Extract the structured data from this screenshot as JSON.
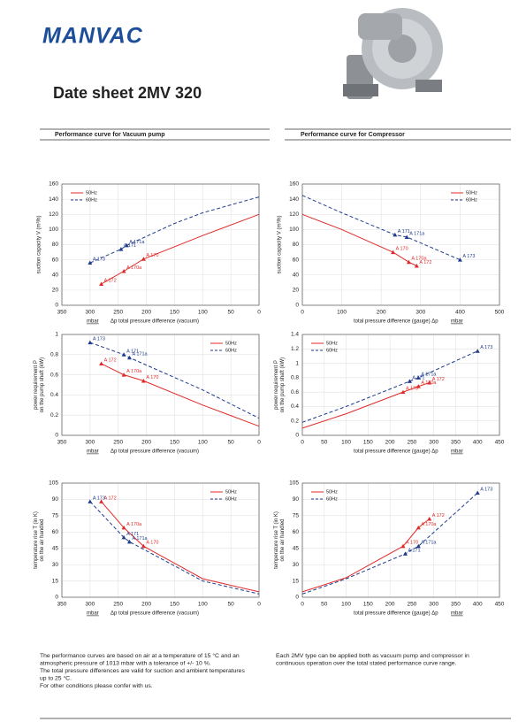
{
  "header": {
    "logo": "MANVAC",
    "title": "Date sheet 2MV 320"
  },
  "sections": [
    "Performance curve for Vacuum pump",
    "Performance curve for Compressor"
  ],
  "chart_data": [
    {
      "type": "line",
      "ylabel": [
        "suction capacity V (m³/h)"
      ],
      "xlabel": "Δp total pressure difference (vacuum)",
      "xunit": "mbar",
      "unit_position": "left",
      "legend": "upper left",
      "grid": true,
      "xlim": [
        350,
        0
      ],
      "xticks": [
        350,
        300,
        250,
        200,
        150,
        100,
        50,
        0
      ],
      "ylim": [
        0,
        160
      ],
      "yticks": [
        0,
        20,
        40,
        60,
        80,
        100,
        120,
        140,
        160
      ],
      "series": [
        {
          "name": "50Hz",
          "color": "#e02a2a",
          "dash": false,
          "x": [
            280,
            240,
            205,
            100,
            0
          ],
          "values": [
            28,
            45,
            61,
            92,
            120
          ],
          "point_labels": [
            "A 172",
            "A 170a",
            "A 170",
            null,
            null
          ]
        },
        {
          "name": "60Hz",
          "color": "#1f3b8c",
          "dash": true,
          "x": [
            300,
            245,
            235,
            150,
            100,
            0
          ],
          "values": [
            56,
            74,
            79,
            108,
            122,
            143
          ],
          "point_labels": [
            "A 173",
            "A 171",
            "A 171a",
            null,
            null,
            null
          ]
        }
      ]
    },
    {
      "type": "line",
      "ylabel": [
        "suction capacity V (m³/h)"
      ],
      "xlabel": "total pressure difference (gauge) Δp",
      "xunit": "mbar",
      "unit_position": "right",
      "legend": "upper right",
      "grid": true,
      "xlim": [
        0,
        500
      ],
      "xticks": [
        0,
        100,
        200,
        300,
        400,
        500
      ],
      "ylim": [
        0,
        160
      ],
      "yticks": [
        0,
        20,
        40,
        60,
        80,
        100,
        120,
        140,
        160
      ],
      "series": [
        {
          "name": "50Hz",
          "color": "#e02a2a",
          "dash": false,
          "x": [
            0,
            100,
            230,
            270,
            290
          ],
          "values": [
            120,
            100,
            70,
            57,
            52
          ],
          "point_labels": [
            null,
            null,
            "A 170",
            "A 170a",
            "A 172"
          ]
        },
        {
          "name": "60Hz",
          "color": "#1f3b8c",
          "dash": true,
          "x": [
            0,
            100,
            235,
            265,
            400
          ],
          "values": [
            145,
            122,
            93,
            90,
            60
          ],
          "point_labels": [
            null,
            null,
            "A 171",
            "A 171a",
            "A 173"
          ]
        }
      ]
    },
    {
      "type": "line",
      "ylabel": [
        "power requirement P",
        "on the pump shaft (kW)"
      ],
      "xlabel": "Δp total pressure difference (vacuum)",
      "xunit": "mbar",
      "unit_position": "left",
      "legend": "upper right",
      "grid": true,
      "xlim": [
        350,
        0
      ],
      "xticks": [
        350,
        300,
        250,
        200,
        150,
        100,
        50,
        0
      ],
      "ylim": [
        0,
        1
      ],
      "yticks": [
        0,
        0.2,
        0.4,
        0.6,
        0.8,
        1
      ],
      "series": [
        {
          "name": "50Hz",
          "color": "#e02a2a",
          "dash": false,
          "x": [
            280,
            240,
            205,
            100,
            0
          ],
          "values": [
            0.71,
            0.6,
            0.54,
            0.3,
            0.09
          ],
          "point_labels": [
            "A 172",
            "A 170a",
            "A 170",
            null,
            null
          ]
        },
        {
          "name": "60Hz",
          "color": "#1f3b8c",
          "dash": true,
          "x": [
            300,
            240,
            230,
            100,
            0
          ],
          "values": [
            0.92,
            0.8,
            0.77,
            0.45,
            0.17
          ],
          "point_labels": [
            "A 173",
            "A 171",
            "A 171a",
            null,
            null
          ]
        }
      ]
    },
    {
      "type": "line",
      "ylabel": [
        "power requirement P",
        "on the pump shaft (kW)"
      ],
      "xlabel": "total pressure difference (gauge) Δp",
      "xunit": "mbar",
      "unit_position": "right",
      "legend": "upper left",
      "grid": true,
      "xlim": [
        0,
        450
      ],
      "xticks": [
        0,
        50,
        100,
        150,
        200,
        250,
        300,
        350,
        400,
        450
      ],
      "ylim": [
        0,
        1.4
      ],
      "yticks": [
        0,
        0.2,
        0.4,
        0.6,
        0.8,
        1,
        1.2,
        1.4
      ],
      "series": [
        {
          "name": "50Hz",
          "color": "#e02a2a",
          "dash": false,
          "x": [
            0,
            100,
            230,
            265,
            290
          ],
          "values": [
            0.1,
            0.3,
            0.6,
            0.68,
            0.73
          ],
          "point_labels": [
            null,
            null,
            "A 170",
            "A 170a",
            "A 172"
          ]
        },
        {
          "name": "60Hz",
          "color": "#1f3b8c",
          "dash": true,
          "x": [
            0,
            100,
            245,
            265,
            400
          ],
          "values": [
            0.18,
            0.4,
            0.75,
            0.8,
            1.17
          ],
          "point_labels": [
            null,
            null,
            "A 171",
            "A 171a",
            "A 173"
          ]
        }
      ]
    },
    {
      "type": "line",
      "ylabel": [
        "temperature rise T (in K)",
        "on the air handled"
      ],
      "xlabel": "Δp total pressure difference (vacuum)",
      "xunit": "mbar",
      "unit_position": "left",
      "legend": "upper right",
      "grid": true,
      "xlim": [
        350,
        0
      ],
      "xticks": [
        350,
        300,
        250,
        200,
        150,
        100,
        50,
        0
      ],
      "ylim": [
        0,
        105
      ],
      "yticks": [
        0,
        15,
        30,
        45,
        60,
        75,
        90,
        105
      ],
      "series": [
        {
          "name": "50Hz",
          "color": "#e02a2a",
          "dash": false,
          "x": [
            280,
            240,
            205,
            100,
            0
          ],
          "values": [
            88,
            64,
            47,
            17,
            5
          ],
          "point_labels": [
            "A 172",
            "A 170a",
            "A 170",
            null,
            null
          ]
        },
        {
          "name": "60Hz",
          "color": "#1f3b8c",
          "dash": true,
          "x": [
            300,
            240,
            230,
            100,
            0
          ],
          "values": [
            88,
            55,
            51,
            15,
            3
          ],
          "point_labels": [
            "A 173",
            "A 171",
            "A 171a",
            null,
            null
          ]
        }
      ]
    },
    {
      "type": "line",
      "ylabel": [
        "temperature rise T (in K)",
        "on the air handled"
      ],
      "xlabel": "total pressure difference (gauge) Δp",
      "xunit": "mbar",
      "unit_position": "right",
      "legend": "upper left",
      "grid": true,
      "xlim": [
        0,
        450
      ],
      "xticks": [
        0,
        50,
        100,
        150,
        200,
        250,
        300,
        350,
        400,
        450
      ],
      "ylim": [
        0,
        105
      ],
      "yticks": [
        0,
        15,
        30,
        45,
        60,
        75,
        90,
        105
      ],
      "series": [
        {
          "name": "50Hz",
          "color": "#e02a2a",
          "dash": false,
          "x": [
            0,
            100,
            230,
            265,
            290
          ],
          "values": [
            5,
            18,
            47,
            64,
            72
          ],
          "point_labels": [
            null,
            null,
            "A 170",
            "A 170a",
            "A 172"
          ]
        },
        {
          "name": "60Hz",
          "color": "#1f3b8c",
          "dash": true,
          "x": [
            0,
            100,
            235,
            265,
            400
          ],
          "values": [
            3,
            17,
            40,
            47,
            96
          ],
          "point_labels": [
            null,
            null,
            "A 171",
            "A 171a",
            "A 173"
          ]
        }
      ]
    }
  ],
  "notes": {
    "left": [
      "The performance curves are based on air at a temperature of 15 °C and an",
      "atmospheric pressure of 1013 mbar with a tolerance of +/- 10 %.",
      "The total pressure differences are valid for suction and ambient temperatures",
      "up to 25 °C.",
      "For other conditions please confer with us."
    ],
    "right": [
      "Each 2MV type can be applied both as vacuum pump and compressor in",
      "continuous operation over the total stated performance curve range."
    ]
  }
}
